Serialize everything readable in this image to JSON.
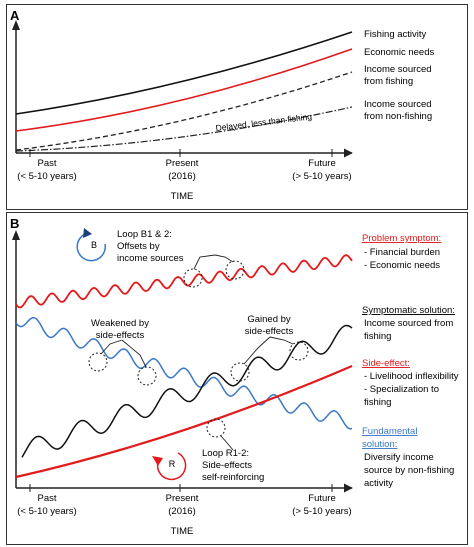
{
  "panel_a": {
    "letter": "A",
    "series_labels": {
      "fishing_activity": "Fishing activity",
      "economic_needs": "Economic needs",
      "income_fishing_1": "Income sourced",
      "income_fishing_2": "from fishing",
      "income_nonfishing_1": "Income sourced",
      "income_nonfishing_2": "from non-fishing"
    },
    "delayed_note": "Delayed, less than fishing",
    "axis": {
      "past_1": "Past",
      "past_2": "(< 5-10 years)",
      "present_1": "Present",
      "present_2": "(2016)",
      "future_1": "Future",
      "future_2": "(> 5-10 years)",
      "time": "TIME"
    }
  },
  "panel_b": {
    "letter": "B",
    "loop_b": {
      "symbol": "B",
      "line1": "Loop B1 & 2:",
      "line2": "Offsets by",
      "line3": "income sources"
    },
    "loop_r": {
      "symbol": "R",
      "line1": "Loop R1-2:",
      "line2": "Side-effects",
      "line3": "self-reinforcing"
    },
    "weakened_1": "Weakened by",
    "weakened_2": "side-effects",
    "gained_1": "Gained by",
    "gained_2": "side-effects",
    "problem": {
      "title": "Problem symptom:",
      "item1": "- Financial burden",
      "item2": "- Economic needs"
    },
    "symptomatic": {
      "title": "Symptomatic solution:",
      "line1": "Income sourced from",
      "line2": "fishing"
    },
    "side_effect": {
      "title": "Side-effect:",
      "item1": "- Livelihood inflexibility",
      "item2a": "- Specialization to",
      "item2b": "fishing"
    },
    "fundamental": {
      "title1": "Fundamental",
      "title2": "solution:",
      "line1": "Diversify income",
      "line2": "source by non-fishing",
      "line3": "activity"
    },
    "axis": {
      "past_1": "Past",
      "past_2": "(< 5-10 years)",
      "present_1": "Present",
      "present_2": "(2016)",
      "future_1": "Future",
      "future_2": "(> 5-10 years)",
      "time": "TIME"
    }
  },
  "colors": {
    "red": "#e31a1c",
    "blue": "#3a78c9",
    "black": "#111111",
    "gray": "#555555"
  }
}
